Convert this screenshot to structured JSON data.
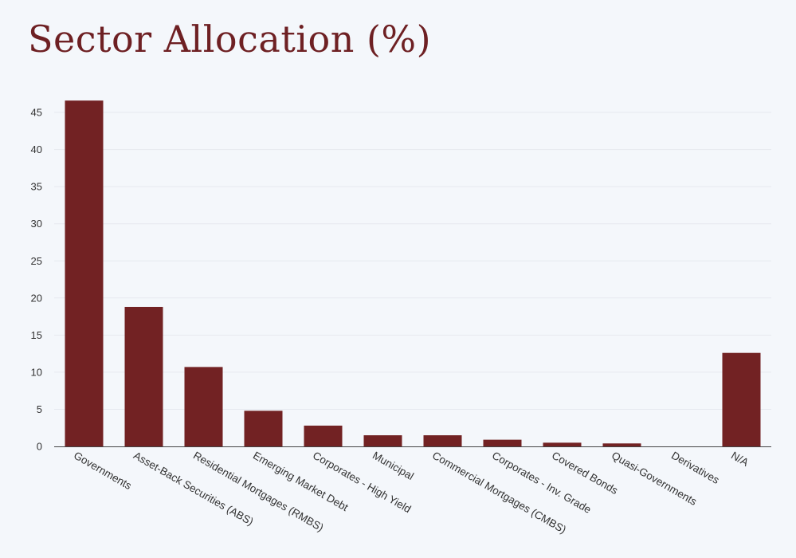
{
  "colors": {
    "background": "#f4f7fb",
    "bar": "#722223",
    "title": "#6e2023",
    "grid": "#e6e9ef",
    "axis": "#444444",
    "text": "#333333"
  },
  "chart_data": {
    "type": "bar",
    "title": "Sector Allocation (%)",
    "xlabel": "",
    "ylabel": "",
    "categories": [
      "Governments",
      "Asset-Back Securities (ABS)",
      "Residential Mortgages (RMBS)",
      "Emerging Market Debt",
      "Corporates - High Yield",
      "Municipal",
      "Commercial Mortgages (CMBS)",
      "Corporates - Inv. Grade",
      "Covered Bonds",
      "Quasi-Governments",
      "Derivatives",
      "N/A"
    ],
    "values": [
      46.6,
      18.8,
      10.7,
      4.8,
      2.8,
      1.5,
      1.5,
      0.9,
      0.5,
      0.4,
      0,
      12.6
    ],
    "ylim": [
      0,
      47
    ],
    "yticks": [
      0,
      5,
      10,
      15,
      20,
      25,
      30,
      35,
      40,
      45
    ],
    "grid": true,
    "legend": "none"
  }
}
